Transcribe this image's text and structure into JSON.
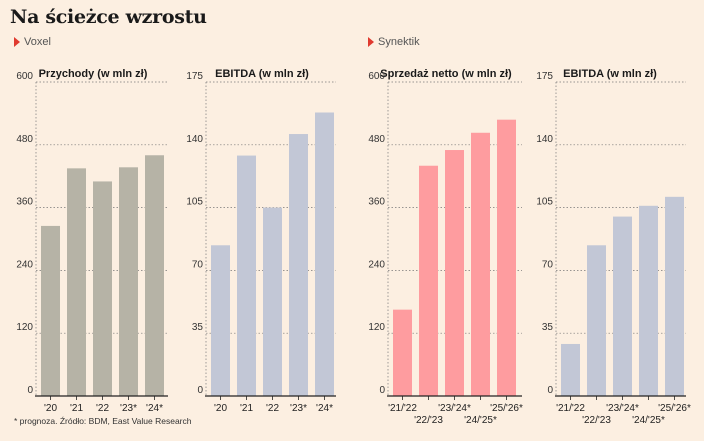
{
  "title": "Na ścieżce wzrostu",
  "groups": {
    "voxel": "Voxel",
    "synektik": "Synektik"
  },
  "footnote": "* prognoza. Źródło: BDM, East Value Research",
  "colors": {
    "grey_bar": "#b6b3a6",
    "blue_bar": "#c2c7d6",
    "red_bar": "#fe9c9f",
    "marker": "#e03a2f",
    "background": "#fcefe1"
  },
  "chart_data": [
    {
      "type": "bar",
      "title": "Przychody (w mln zł)",
      "group": "Voxel",
      "categories": [
        "'20",
        "'21",
        "'22",
        "'23*",
        "'24*"
      ],
      "values": [
        325,
        435,
        410,
        437,
        460
      ],
      "ylim": [
        0,
        600
      ],
      "yticks": [
        0,
        120,
        240,
        360,
        480,
        600
      ],
      "color": "grey_bar"
    },
    {
      "type": "bar",
      "title": "EBITDA (w mln zł)",
      "group": "Voxel",
      "categories": [
        "'20",
        "'21",
        "'22",
        "'23*",
        "'24*"
      ],
      "values": [
        84,
        134,
        105,
        146,
        158
      ],
      "ylim": [
        0,
        175
      ],
      "yticks": [
        0,
        35,
        70,
        105,
        140,
        175
      ],
      "color": "blue_bar"
    },
    {
      "type": "bar",
      "title": "Sprzedaż netto (w mln zł)",
      "group": "Synektik",
      "categories": [
        "'21/'22",
        "'22/'23",
        "'23/'24*",
        "'24/'25*",
        "'25/'26*"
      ],
      "values": [
        165,
        440,
        470,
        503,
        528
      ],
      "ylim": [
        0,
        600
      ],
      "yticks": [
        0,
        120,
        240,
        360,
        480,
        600
      ],
      "color": "red_bar"
    },
    {
      "type": "bar",
      "title": "EBITDA (w mln zł)",
      "group": "Synektik",
      "categories": [
        "'21/'22",
        "'22/'23",
        "'23/'24*",
        "'24/'25*",
        "'25/'26*"
      ],
      "values": [
        29,
        84,
        100,
        106,
        111
      ],
      "ylim": [
        0,
        175
      ],
      "yticks": [
        0,
        35,
        70,
        105,
        140,
        175
      ],
      "color": "blue_bar"
    }
  ]
}
